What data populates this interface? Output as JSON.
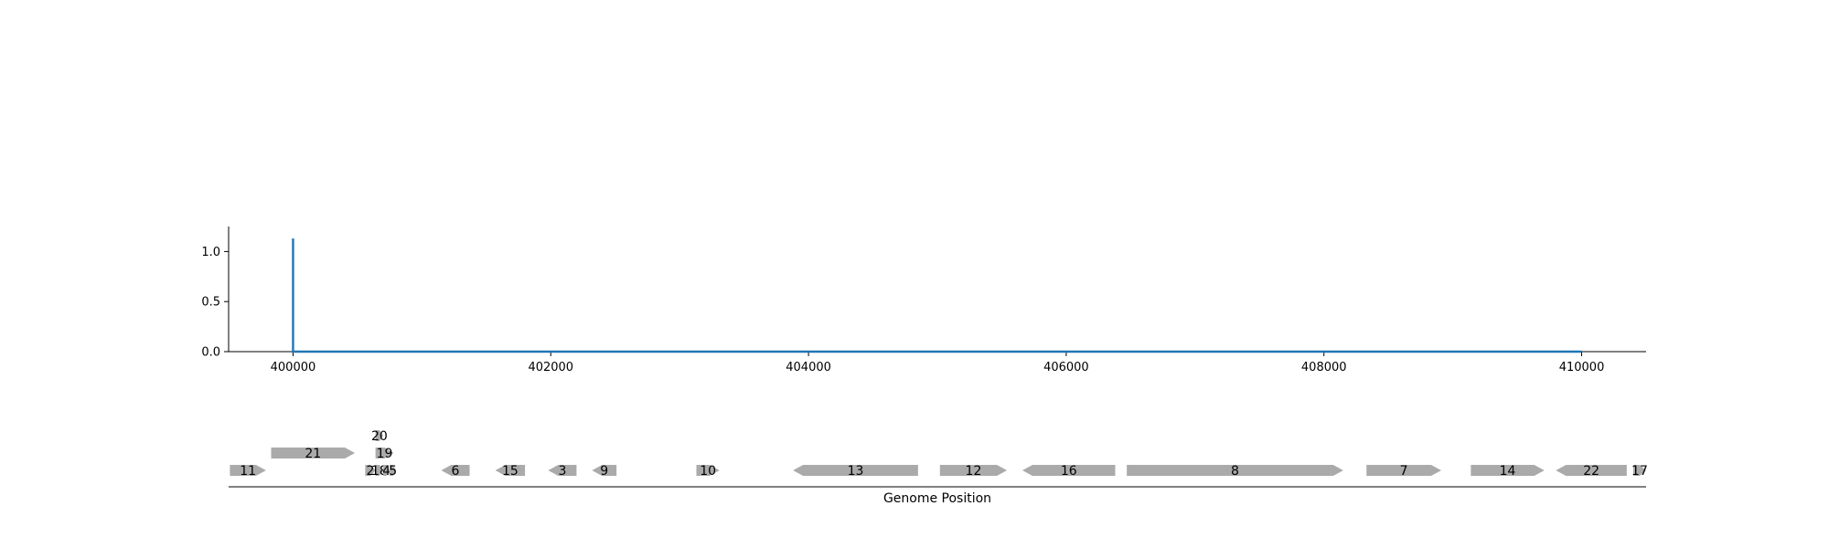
{
  "chart_data": {
    "type": "line",
    "title": "",
    "xlabel": "Genome Position",
    "ylabel": "",
    "xlim": [
      399500,
      410500
    ],
    "ylim": [
      0,
      1.25
    ],
    "x_ticks": [
      400000,
      402000,
      404000,
      406000,
      408000,
      410000
    ],
    "x_tick_labels": [
      "400000",
      "402000",
      "404000",
      "406000",
      "408000",
      "410000"
    ],
    "y_ticks": [
      0.0,
      0.5,
      1.0
    ],
    "y_tick_labels": [
      "0.0",
      "0.5",
      "1.0"
    ],
    "grid": false,
    "series": [
      {
        "color": "#1f77b4",
        "x": [
          400000,
          400000,
          400005,
          410000
        ],
        "y": [
          1.13,
          0,
          0,
          0
        ]
      }
    ],
    "genes": [
      {
        "label": "11",
        "start": 399510,
        "end": 399790,
        "strand": "+",
        "row": 0
      },
      {
        "label": "21",
        "start": 399830,
        "end": 400480,
        "strand": "+",
        "row": 1
      },
      {
        "label": "20",
        "start": 400640,
        "end": 400700,
        "strand": "+",
        "row": 2
      },
      {
        "label": "19",
        "start": 400640,
        "end": 400780,
        "strand": "+",
        "row": 1
      },
      {
        "label": "2",
        "start": 400560,
        "end": 400640,
        "strand": "+",
        "row": 0
      },
      {
        "label": "18",
        "start": 400640,
        "end": 400700,
        "strand": "+",
        "row": 0
      },
      {
        "label": "4",
        "start": 400700,
        "end": 400750,
        "strand": "+",
        "row": 0
      },
      {
        "label": "5",
        "start": 400750,
        "end": 400800,
        "strand": "+",
        "row": 0
      },
      {
        "label": "6",
        "start": 401150,
        "end": 401370,
        "strand": "-",
        "row": 0
      },
      {
        "label": "15",
        "start": 401570,
        "end": 401800,
        "strand": "-",
        "row": 0
      },
      {
        "label": "3",
        "start": 401980,
        "end": 402200,
        "strand": "-",
        "row": 0
      },
      {
        "label": "9",
        "start": 402320,
        "end": 402510,
        "strand": "-",
        "row": 0
      },
      {
        "label": "10",
        "start": 403130,
        "end": 403310,
        "strand": "+",
        "row": 0
      },
      {
        "label": "13",
        "start": 403880,
        "end": 404850,
        "strand": "-",
        "row": 0
      },
      {
        "label": "12",
        "start": 405020,
        "end": 405540,
        "strand": "+",
        "row": 0
      },
      {
        "label": "16",
        "start": 405660,
        "end": 406380,
        "strand": "-",
        "row": 0
      },
      {
        "label": "8",
        "start": 406470,
        "end": 408150,
        "strand": "+",
        "row": 0
      },
      {
        "label": "7",
        "start": 408330,
        "end": 408910,
        "strand": "+",
        "row": 0
      },
      {
        "label": "14",
        "start": 409140,
        "end": 409710,
        "strand": "+",
        "row": 0
      },
      {
        "label": "22",
        "start": 409800,
        "end": 410350,
        "strand": "-",
        "row": 0
      },
      {
        "label": "17",
        "start": 410400,
        "end": 410500,
        "strand": "+",
        "row": 0
      }
    ],
    "colors": {
      "line": "#1f77b4",
      "gene": "#aaaaaa",
      "axis": "#000000"
    }
  }
}
